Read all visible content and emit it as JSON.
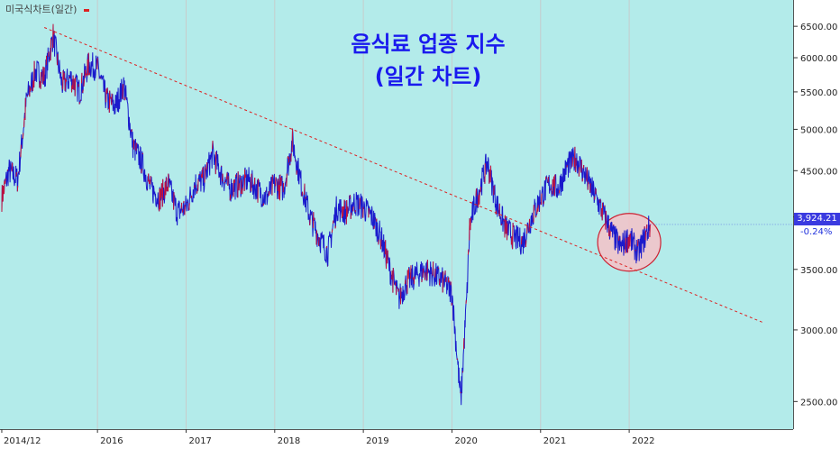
{
  "chart_data": {
    "type": "line",
    "title": "음식료 업종 지수",
    "subtitle": "(일간 차트)",
    "series_label": "미국식차트(일간)",
    "yscale": "log",
    "ylim": [
      2330,
      6950
    ],
    "xlim": [
      2014.9,
      2023.85
    ],
    "y_ticks": [
      "6500.00",
      "6000.00",
      "5500.00",
      "5000.00",
      "4500.00",
      "4000.00",
      "3500.00",
      "3000.00",
      "2500.00"
    ],
    "y_tick_values": [
      6500,
      6000,
      5500,
      5000,
      4500,
      4000,
      3500,
      3000,
      2500
    ],
    "x_ticks": [
      "2014/12",
      "2016",
      "2017",
      "2018",
      "2019",
      "2020",
      "2021",
      "2022"
    ],
    "x_tick_values": [
      2014.92,
      2016.0,
      2017.0,
      2018.0,
      2019.0,
      2020.0,
      2021.0,
      2022.0
    ],
    "last_price": "3,924.21",
    "last_change": "-0.24%",
    "colors": {
      "background": "#b3ebea",
      "line": "#1a1acc",
      "line_up": "#cc1133",
      "trend": "#dd2222",
      "circle_fill": "#f4c2c8",
      "circle_stroke": "#cc2233",
      "title": "#1a1aee"
    },
    "series": [
      {
        "x": [
          2014.92,
          2015.0,
          2015.1,
          2015.2,
          2015.3,
          2015.4,
          2015.5,
          2015.6,
          2015.7,
          2015.8,
          2015.9,
          2016.0,
          2016.1,
          2016.2,
          2016.3,
          2016.4,
          2016.5,
          2016.6,
          2016.7,
          2016.8,
          2016.9,
          2017.0,
          2017.1,
          2017.2,
          2017.3,
          2017.4,
          2017.5,
          2017.6,
          2017.7,
          2017.8,
          2017.9,
          2018.0,
          2018.1,
          2018.2,
          2018.3,
          2018.4,
          2018.5,
          2018.6,
          2018.7,
          2018.8,
          2018.9,
          2019.0,
          2019.1,
          2019.2,
          2019.3,
          2019.4,
          2019.5,
          2019.6,
          2019.7,
          2019.8,
          2019.9,
          2020.0,
          2020.1,
          2020.17,
          2020.2,
          2020.25,
          2020.3,
          2020.4,
          2020.5,
          2020.6,
          2020.7,
          2020.8,
          2020.9,
          2021.0,
          2021.1,
          2021.2,
          2021.3,
          2021.4,
          2021.5,
          2021.6,
          2021.7,
          2021.8,
          2021.9,
          2022.0,
          2022.1,
          2022.2,
          2022.24
        ],
        "y": [
          4200,
          4500,
          4400,
          5400,
          5800,
          5700,
          6350,
          5600,
          5700,
          5500,
          5900,
          5850,
          5400,
          5300,
          5600,
          4800,
          4600,
          4300,
          4200,
          4350,
          4050,
          4100,
          4350,
          4400,
          4700,
          4450,
          4300,
          4350,
          4400,
          4300,
          4200,
          4350,
          4300,
          4850,
          4350,
          4000,
          3800,
          3650,
          4100,
          4050,
          4150,
          4100,
          4000,
          3800,
          3500,
          3250,
          3400,
          3450,
          3500,
          3450,
          3400,
          3300,
          2500,
          3300,
          3900,
          4100,
          4250,
          4600,
          4150,
          3900,
          3800,
          3750,
          4000,
          4200,
          4350,
          4300,
          4550,
          4650,
          4450,
          4250,
          4050,
          3850,
          3700,
          3800,
          3650,
          3850,
          3924
        ]
      }
    ],
    "annotations": [
      {
        "type": "trendline",
        "from": [
          2015.4,
          6480
        ],
        "to": [
          2023.5,
          3060
        ]
      },
      {
        "type": "circle",
        "center": [
          2022.0,
          3750
        ]
      }
    ]
  }
}
